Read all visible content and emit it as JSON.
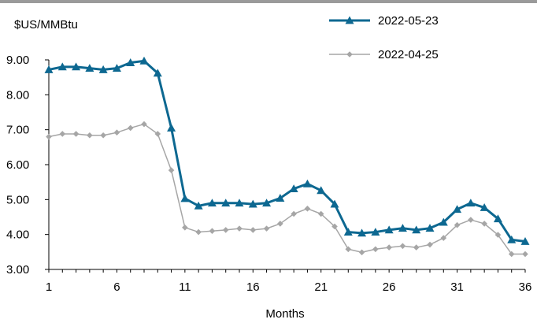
{
  "chart_data": {
    "type": "line",
    "ylabel": "$US/MMBtu",
    "xlabel": "Months",
    "ylim": [
      3.0,
      9.0
    ],
    "yticks": [
      "3.00",
      "4.00",
      "5.00",
      "6.00",
      "7.00",
      "8.00",
      "9.00"
    ],
    "xlim": [
      1,
      36
    ],
    "xticks": [
      "1",
      "6",
      "11",
      "16",
      "21",
      "26",
      "31",
      "36"
    ],
    "grid": false,
    "legend_position": "top-right",
    "x": [
      1,
      2,
      3,
      4,
      5,
      6,
      7,
      8,
      9,
      10,
      11,
      12,
      13,
      14,
      15,
      16,
      17,
      18,
      19,
      20,
      21,
      22,
      23,
      24,
      25,
      26,
      27,
      28,
      29,
      30,
      31,
      32,
      33,
      34,
      35,
      36
    ],
    "series": [
      {
        "name": "2022-05-23",
        "color": "#0d6891",
        "marker": "triangle",
        "values": [
          8.72,
          8.8,
          8.8,
          8.76,
          8.72,
          8.76,
          8.92,
          8.97,
          8.62,
          7.05,
          5.03,
          4.82,
          4.9,
          4.9,
          4.9,
          4.87,
          4.9,
          5.04,
          5.31,
          5.45,
          5.26,
          4.87,
          4.07,
          4.04,
          4.07,
          4.13,
          4.18,
          4.13,
          4.18,
          4.35,
          4.72,
          4.9,
          4.77,
          4.45,
          3.85,
          3.8
        ]
      },
      {
        "name": "2022-04-25",
        "color": "#a6a6a6",
        "marker": "diamond",
        "values": [
          6.8,
          6.88,
          6.88,
          6.84,
          6.84,
          6.92,
          7.05,
          7.16,
          6.88,
          5.84,
          4.2,
          4.07,
          4.1,
          4.13,
          4.17,
          4.13,
          4.17,
          4.31,
          4.59,
          4.74,
          4.59,
          4.23,
          3.58,
          3.49,
          3.58,
          3.63,
          3.67,
          3.63,
          3.71,
          3.9,
          4.27,
          4.42,
          4.31,
          3.99,
          3.44,
          3.44
        ]
      }
    ]
  }
}
